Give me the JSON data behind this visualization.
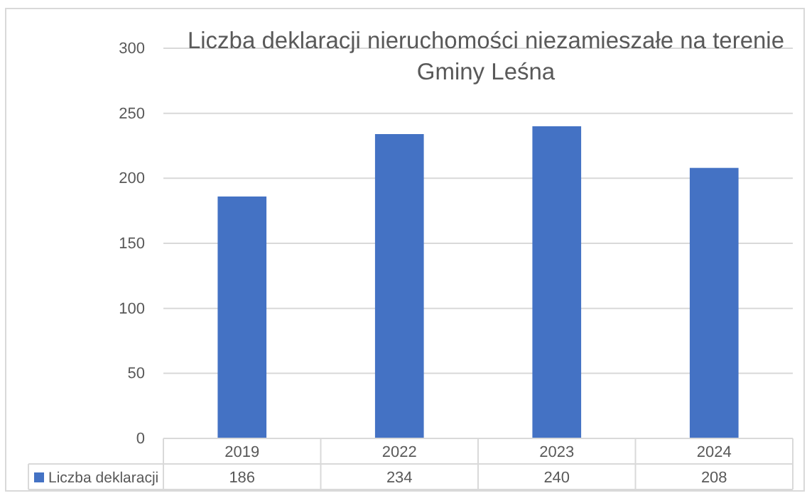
{
  "chart_data": {
    "type": "bar",
    "title": "Liczba deklaracji nieruchomości niezamieszałe na terenie Gminy Leśna",
    "categories": [
      "2019",
      "2022",
      "2023",
      "2024"
    ],
    "series": [
      {
        "name": "Liczba deklaracji",
        "color": "#4472c4",
        "values": [
          186,
          234,
          240,
          208
        ]
      }
    ],
    "ylim": [
      0,
      300
    ],
    "yticks": [
      0,
      50,
      100,
      150,
      200,
      250,
      300
    ],
    "grid": "y",
    "legend": "bottom",
    "data_labels": true
  }
}
